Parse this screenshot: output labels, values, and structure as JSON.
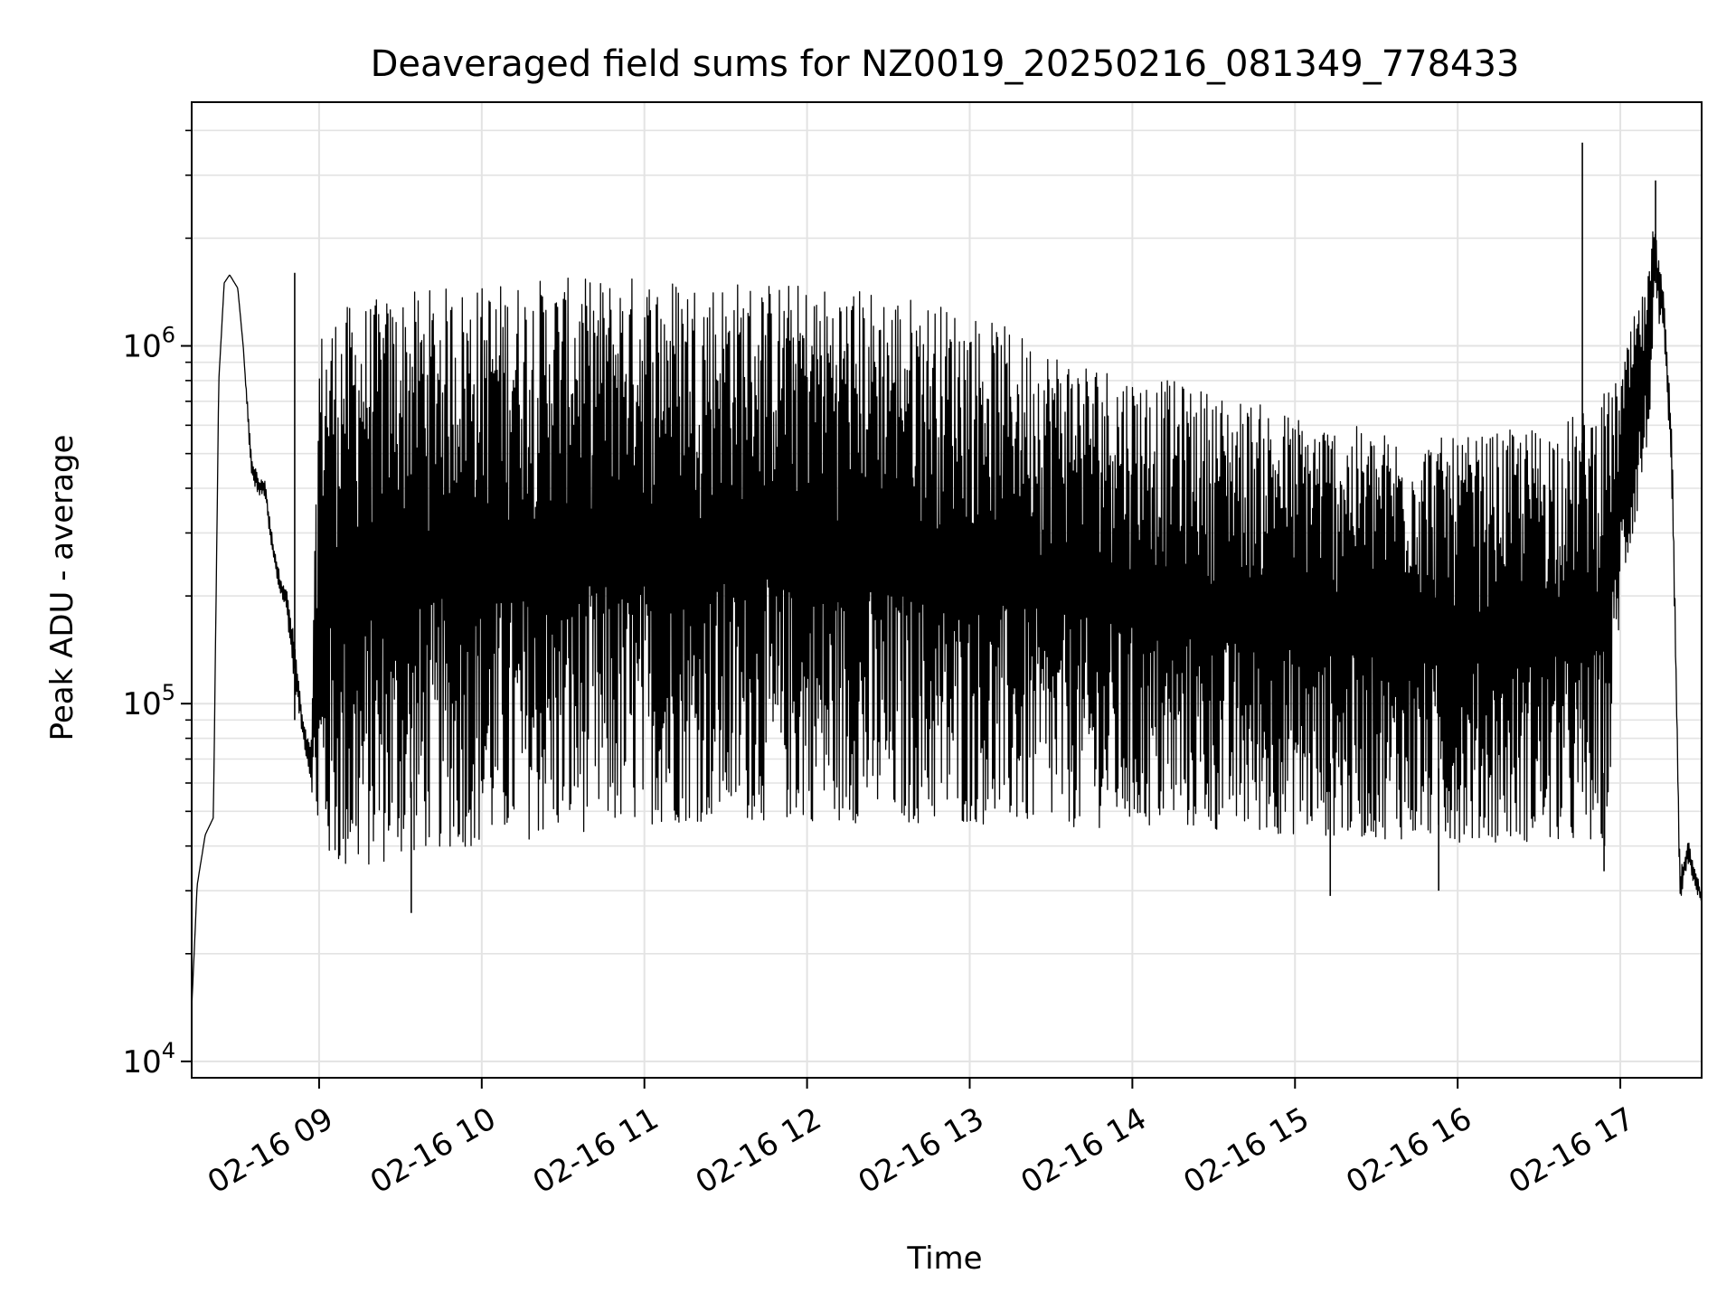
{
  "chart_data": {
    "type": "line",
    "title": "Deaveraged field sums for NZ0019_20250216_081349_778433",
    "xlabel": "Time",
    "ylabel": "Peak ADU - average",
    "yscale": "log",
    "ylim": [
      9000,
      4800000
    ],
    "xlim": [
      "2025-02-16 08:13",
      "2025-02-16 17:30"
    ],
    "x_ticks": [
      "02-16 09",
      "02-16 10",
      "02-16 11",
      "02-16 12",
      "02-16 13",
      "02-16 14",
      "02-16 15",
      "02-16 16",
      "02-16 17"
    ],
    "x_tick_times": [
      "2025-02-16 09:00",
      "2025-02-16 10:00",
      "2025-02-16 11:00",
      "2025-02-16 12:00",
      "2025-02-16 13:00",
      "2025-02-16 14:00",
      "2025-02-16 15:00",
      "2025-02-16 16:00",
      "2025-02-16 17:00"
    ],
    "y_ticks": [
      {
        "value": 10000,
        "base": "10",
        "exp": "4"
      },
      {
        "value": 100000,
        "base": "10",
        "exp": "5"
      },
      {
        "value": 1000000,
        "base": "10",
        "exp": "6"
      }
    ],
    "grid": true,
    "line_color": "#000000",
    "series": [
      {
        "time": [
          "2025-02-16 08:13",
          "2025-02-16 08:15",
          "2025-02-16 08:18",
          "2025-02-16 08:21",
          "2025-02-16 08:23",
          "2025-02-16 08:25",
          "2025-02-16 08:27",
          "2025-02-16 08:30",
          "2025-02-16 08:32",
          "2025-02-16 08:35",
          "2025-02-16 08:38",
          "2025-02-16 08:40",
          "2025-02-16 08:42",
          "2025-02-16 08:45",
          "2025-02-16 08:48",
          "2025-02-16 08:51",
          "2025-02-16 08:54",
          "2025-02-16 08:57",
          "2025-02-16 09:00",
          "2025-02-16 09:05",
          "2025-02-16 09:10",
          "2025-02-16 09:20",
          "2025-02-16 09:30",
          "2025-02-16 09:40",
          "2025-02-16 10:00",
          "2025-02-16 10:20",
          "2025-02-16 10:40",
          "2025-02-16 11:00",
          "2025-02-16 11:30",
          "2025-02-16 12:00",
          "2025-02-16 12:30",
          "2025-02-16 13:00",
          "2025-02-16 13:30",
          "2025-02-16 14:00",
          "2025-02-16 14:30",
          "2025-02-16 15:00",
          "2025-02-16 15:30",
          "2025-02-16 16:00",
          "2025-02-16 16:30",
          "2025-02-16 16:45",
          "2025-02-16 16:50",
          "2025-02-16 16:55",
          "2025-02-16 17:00",
          "2025-02-16 17:05",
          "2025-02-16 17:10",
          "2025-02-16 17:13",
          "2025-02-16 17:16",
          "2025-02-16 17:19",
          "2025-02-16 17:22",
          "2025-02-16 17:25",
          "2025-02-16 17:30"
        ],
        "upper": [
          14000,
          31000,
          43000,
          48000,
          800000,
          1500000,
          1580000,
          1450000,
          1000000,
          500000,
          420000,
          430000,
          320000,
          240000,
          210000,
          150000,
          90000,
          75000,
          1100000,
          1250000,
          1300000,
          1350000,
          1400000,
          1450000,
          1500000,
          1550000,
          1550000,
          1600000,
          1550000,
          1500000,
          1450000,
          1250000,
          1000000,
          850000,
          750000,
          650000,
          580000,
          550000,
          600000,
          650000,
          700000,
          750000,
          820000,
          1200000,
          1500000,
          2500000,
          1400000,
          600000,
          35000,
          42000,
          30000
        ],
        "lower": [
          14000,
          31000,
          43000,
          48000,
          800000,
          1500000,
          1580000,
          1450000,
          1000000,
          420000,
          380000,
          380000,
          280000,
          210000,
          180000,
          110000,
          80000,
          60000,
          36000,
          35000,
          33000,
          35000,
          37000,
          39000,
          40000,
          42000,
          44000,
          46000,
          47000,
          47000,
          46000,
          46000,
          45000,
          45000,
          44000,
          43000,
          42000,
          41000,
          41000,
          40000,
          40000,
          40000,
          190000,
          300000,
          500000,
          1200000,
          1000000,
          400000,
          27000,
          35000,
          27000
        ],
        "spikes": [
          {
            "time": "2025-02-16 16:46",
            "value": 3700000
          },
          {
            "time": "2025-02-16 17:13",
            "value": 2900000
          },
          {
            "time": "2025-02-16 08:51",
            "value": 1600000
          },
          {
            "time": "2025-02-16 09:34",
            "value": 26000
          },
          {
            "time": "2025-02-16 15:13",
            "value": 29000
          },
          {
            "time": "2025-02-16 15:53",
            "value": 30000
          },
          {
            "time": "2025-02-16 16:54",
            "value": 34000
          }
        ]
      }
    ]
  }
}
